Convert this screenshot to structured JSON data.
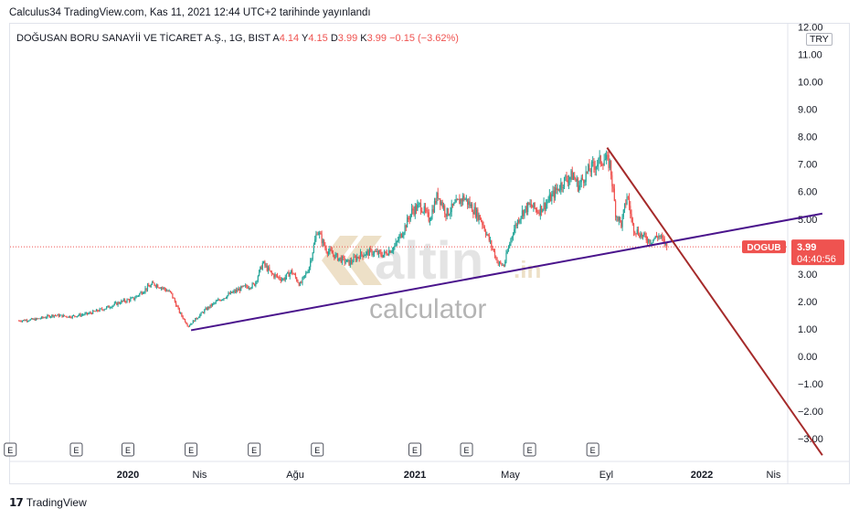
{
  "header": {
    "published": "Calculus34 TradingView.com, Kas 11, 2021 12:44 UTC+2 tarihinde yayınlandı"
  },
  "symbol": {
    "name": "DOĞUSAN BORU SANAYİİ VE TİCARET A.Ş., 1G, BIST",
    "open_label": "A",
    "open": "4.14",
    "high_label": "Y",
    "high": "4.15",
    "low_label": "D",
    "low": "3.99",
    "close_label": "K",
    "close": "3.99",
    "change": "−0.15 (−3.62%)",
    "currency": "TRY"
  },
  "price_tag": {
    "ticker": "DOGUB",
    "price": "3.99",
    "countdown": "04:40:56"
  },
  "watermark": {
    "brand": "altin",
    "tld": ".in",
    "sub": "calculator"
  },
  "footer": {
    "brand": "TradingView"
  },
  "colors": {
    "up": "#26a69a",
    "down": "#ef5350",
    "support_line": "#4a148c",
    "resistance_line": "#a52a2a",
    "price_tag_bg": "#ef5350"
  },
  "chart_data": {
    "type": "candlestick",
    "y_ticks": [
      "12.00",
      "11.00",
      "10.00",
      "9.00",
      "8.00",
      "7.00",
      "6.00",
      "5.00",
      "4.00",
      "3.00",
      "2.00",
      "1.00",
      "0.00",
      "−1.00",
      "−2.00",
      "−3.00"
    ],
    "y_range": [
      -3.6,
      12.0
    ],
    "x_ticks": [
      {
        "label": "2020",
        "bold": true,
        "t": 0.0
      },
      {
        "label": "Nis",
        "bold": false,
        "t": 0.25
      },
      {
        "label": "Ağu",
        "bold": false,
        "t": 0.583
      },
      {
        "label": "2021",
        "bold": true,
        "t": 1.0
      },
      {
        "label": "May",
        "bold": false,
        "t": 1.333
      },
      {
        "label": "Eyl",
        "bold": false,
        "t": 1.667
      },
      {
        "label": "2022",
        "bold": true,
        "t": 2.0
      },
      {
        "label": "Nis",
        "bold": false,
        "t": 2.25
      }
    ],
    "price_path": [
      {
        "t": -0.38,
        "p": 1.3
      },
      {
        "t": -0.32,
        "p": 1.35
      },
      {
        "t": -0.26,
        "p": 1.5
      },
      {
        "t": -0.2,
        "p": 1.45
      },
      {
        "t": -0.14,
        "p": 1.55
      },
      {
        "t": -0.08,
        "p": 1.75
      },
      {
        "t": -0.02,
        "p": 2.0
      },
      {
        "t": 0.02,
        "p": 2.1
      },
      {
        "t": 0.06,
        "p": 2.45
      },
      {
        "t": 0.09,
        "p": 2.65
      },
      {
        "t": 0.12,
        "p": 2.5
      },
      {
        "t": 0.15,
        "p": 2.3
      },
      {
        "t": 0.18,
        "p": 1.6
      },
      {
        "t": 0.21,
        "p": 1.1
      },
      {
        "t": 0.23,
        "p": 1.3
      },
      {
        "t": 0.27,
        "p": 1.7
      },
      {
        "t": 0.31,
        "p": 2.0
      },
      {
        "t": 0.36,
        "p": 2.3
      },
      {
        "t": 0.4,
        "p": 2.5
      },
      {
        "t": 0.44,
        "p": 2.6
      },
      {
        "t": 0.47,
        "p": 3.4
      },
      {
        "t": 0.5,
        "p": 3.0
      },
      {
        "t": 0.54,
        "p": 2.8
      },
      {
        "t": 0.57,
        "p": 3.1
      },
      {
        "t": 0.6,
        "p": 2.6
      },
      {
        "t": 0.63,
        "p": 3.2
      },
      {
        "t": 0.66,
        "p": 4.6
      },
      {
        "t": 0.69,
        "p": 3.9
      },
      {
        "t": 0.73,
        "p": 3.6
      },
      {
        "t": 0.77,
        "p": 3.4
      },
      {
        "t": 0.81,
        "p": 3.7
      },
      {
        "t": 0.85,
        "p": 3.8
      },
      {
        "t": 0.89,
        "p": 3.7
      },
      {
        "t": 0.93,
        "p": 4.0
      },
      {
        "t": 0.96,
        "p": 4.6
      },
      {
        "t": 0.99,
        "p": 5.3
      },
      {
        "t": 1.02,
        "p": 5.5
      },
      {
        "t": 1.05,
        "p": 5.0
      },
      {
        "t": 1.08,
        "p": 5.9
      },
      {
        "t": 1.11,
        "p": 5.2
      },
      {
        "t": 1.14,
        "p": 5.5
      },
      {
        "t": 1.17,
        "p": 5.8
      },
      {
        "t": 1.2,
        "p": 5.4
      },
      {
        "t": 1.23,
        "p": 5.0
      },
      {
        "t": 1.26,
        "p": 4.2
      },
      {
        "t": 1.29,
        "p": 3.4
      },
      {
        "t": 1.31,
        "p": 3.3
      },
      {
        "t": 1.34,
        "p": 4.5
      },
      {
        "t": 1.37,
        "p": 5.2
      },
      {
        "t": 1.4,
        "p": 5.5
      },
      {
        "t": 1.43,
        "p": 5.3
      },
      {
        "t": 1.46,
        "p": 5.6
      },
      {
        "t": 1.49,
        "p": 6.0
      },
      {
        "t": 1.52,
        "p": 6.4
      },
      {
        "t": 1.55,
        "p": 6.6
      },
      {
        "t": 1.57,
        "p": 6.2
      },
      {
        "t": 1.6,
        "p": 6.7
      },
      {
        "t": 1.63,
        "p": 7.0
      },
      {
        "t": 1.66,
        "p": 7.2
      },
      {
        "t": 1.68,
        "p": 7.0
      },
      {
        "t": 1.7,
        "p": 5.2
      },
      {
        "t": 1.72,
        "p": 4.8
      },
      {
        "t": 1.74,
        "p": 5.9
      },
      {
        "t": 1.76,
        "p": 4.7
      },
      {
        "t": 1.79,
        "p": 4.4
      },
      {
        "t": 1.82,
        "p": 4.2
      },
      {
        "t": 1.85,
        "p": 4.4
      },
      {
        "t": 1.87,
        "p": 4.14
      },
      {
        "t": 1.88,
        "p": 3.99
      }
    ],
    "support_line": {
      "start": {
        "t": 0.22,
        "p": 0.95
      },
      "end": {
        "t": 2.42,
        "p": 5.2
      }
    },
    "resistance_line": {
      "start": {
        "t": 1.67,
        "p": 7.6
      },
      "end": {
        "t": 2.42,
        "p": -3.6
      }
    },
    "last_price": 3.99,
    "earnings_markers": [
      -0.41,
      -0.18,
      0.0,
      0.22,
      0.44,
      0.66,
      1.0,
      1.18,
      1.4,
      1.62
    ],
    "earnings_label": "E"
  }
}
